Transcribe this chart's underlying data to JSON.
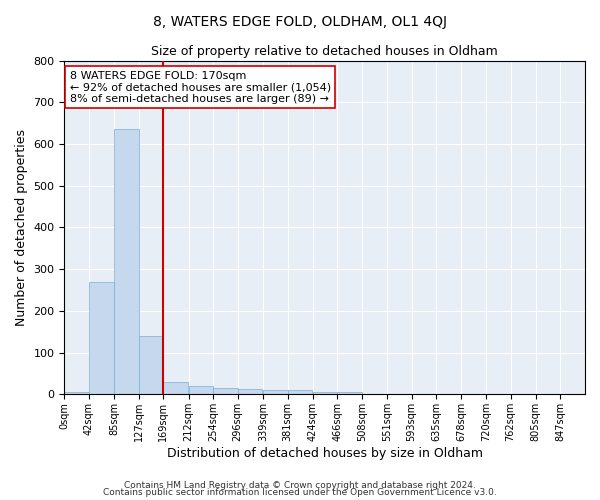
{
  "title": "8, WATERS EDGE FOLD, OLDHAM, OL1 4QJ",
  "subtitle": "Size of property relative to detached houses in Oldham",
  "xlabel": "Distribution of detached houses by size in Oldham",
  "ylabel": "Number of detached properties",
  "bar_color": "#c5d8ee",
  "bar_edge_color": "#7bafd4",
  "bin_starts": [
    0,
    42,
    85,
    127,
    169,
    212,
    254,
    296,
    339,
    381,
    424,
    466,
    508,
    551,
    593,
    635,
    678,
    720,
    762,
    805
  ],
  "bar_heights": [
    5,
    270,
    635,
    140,
    30,
    20,
    15,
    12,
    10,
    10,
    5,
    5,
    2,
    0,
    0,
    0,
    2,
    0,
    0,
    0
  ],
  "tick_labels": [
    "0sqm",
    "42sqm",
    "85sqm",
    "127sqm",
    "169sqm",
    "212sqm",
    "254sqm",
    "296sqm",
    "339sqm",
    "381sqm",
    "424sqm",
    "466sqm",
    "508sqm",
    "551sqm",
    "593sqm",
    "635sqm",
    "678sqm",
    "720sqm",
    "762sqm",
    "805sqm",
    "847sqm"
  ],
  "vline_x": 169,
  "vline_color": "#cc0000",
  "annotation_line1": "8 WATERS EDGE FOLD: 170sqm",
  "annotation_line2": "← 92% of detached houses are smaller (1,054)",
  "annotation_line3": "8% of semi-detached houses are larger (89) →",
  "annotation_box_color": "#ffffff",
  "annotation_box_edge": "#cc0000",
  "ylim": [
    0,
    800
  ],
  "yticks": [
    0,
    100,
    200,
    300,
    400,
    500,
    600,
    700,
    800
  ],
  "footnote1": "Contains HM Land Registry data © Crown copyright and database right 2024.",
  "footnote2": "Contains public sector information licensed under the Open Government Licence v3.0.",
  "bg_color": "#e8eef5",
  "fig_bg_color": "#ffffff"
}
